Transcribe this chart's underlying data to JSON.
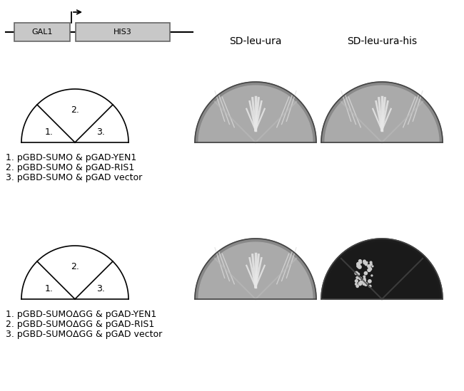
{
  "bg_color": "#ffffff",
  "box_color": "#c8c8c8",
  "box_edge_color": "#666666",
  "gal1_label": "GAL1",
  "his3_label": "HIS3",
  "title_sd1": "SD-leu-ura",
  "title_sd2": "SD-leu-ura-his",
  "sector_labels": [
    "1.",
    "2.",
    "3."
  ],
  "labels_top": [
    "1. pGBD-SUMO & pGAD-YEN1",
    "2. pGBD-SUMO & pGAD-RIS1",
    "3. pGBD-SUMO & pGAD vector"
  ],
  "labels_bottom": [
    "1. pGBD-SUMOΔGG & pGAD-YEN1",
    "2. pGBD-SUMOΔGG & pGAD-RIS1",
    "3. pGBD-SUMOΔGG & pGAD vector"
  ],
  "font_size_sector": 9,
  "font_size_label": 9,
  "font_size_box": 8,
  "font_size_header": 10,
  "plate1_color": "#888888",
  "plate2_color": "#888888",
  "plate3_color": "#888888",
  "plate4_color": "#303030",
  "plate_edge": "#222222",
  "plate_inner_light": "#cccccc",
  "plate_inner_dark": "#555555"
}
